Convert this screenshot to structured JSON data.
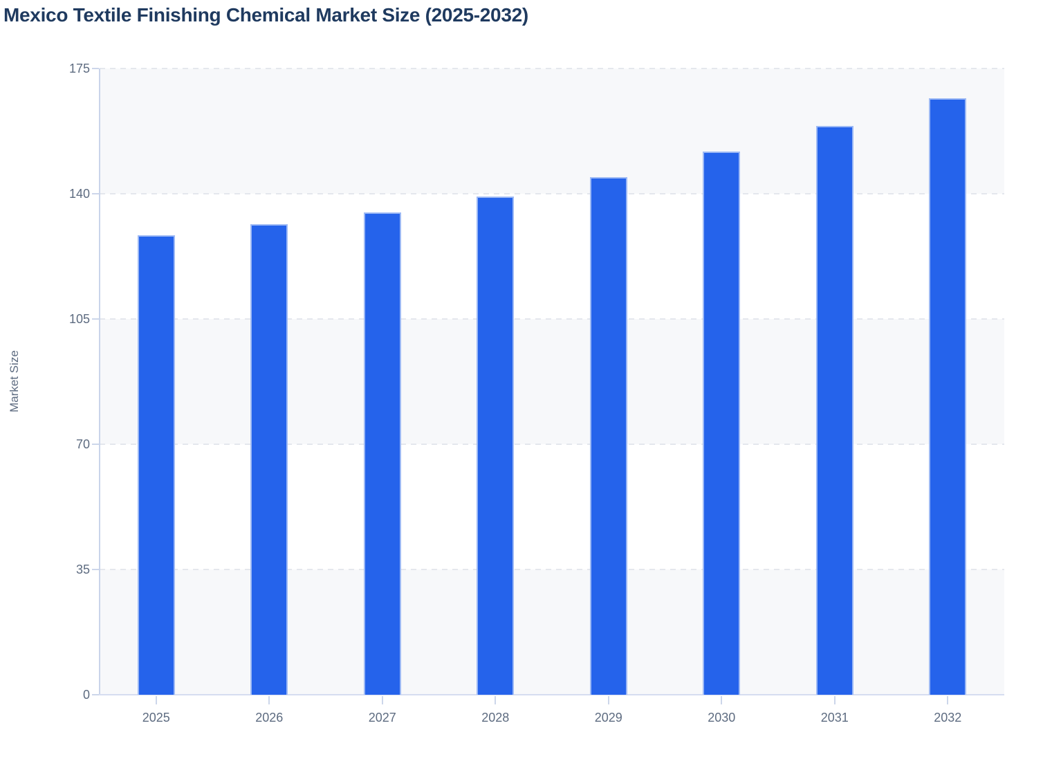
{
  "page": {
    "background": "#ffffff"
  },
  "chart_data": {
    "type": "bar",
    "title": "Mexico Textile Finishing Chemical Market Size (2025-2032)",
    "xlabel": "",
    "ylabel": "Market Size",
    "categories": [
      "2025",
      "2026",
      "2027",
      "2028",
      "2029",
      "2030",
      "2031",
      "2032"
    ],
    "series": [
      {
        "name": "Market Size",
        "values": [
          128.4,
          131.5,
          134.8,
          139.2,
          144.6,
          151.7,
          159.0,
          166.6
        ]
      }
    ],
    "ylim": [
      0,
      175
    ],
    "y_ticks": [
      0,
      35,
      70,
      105,
      140,
      175
    ],
    "grid": "horizontal-dashed",
    "legend_position": "none",
    "colors": {
      "bar_fill": "#2563eb",
      "bar_border": "#9db9f5",
      "title_text": "#1f3a5f",
      "tick_text": "#5d6b80",
      "gridline": "#e4e7ed",
      "axis_line": "#c9d4ea",
      "band_shade": "#f7f8fa",
      "band_plain": "#ffffff"
    }
  }
}
